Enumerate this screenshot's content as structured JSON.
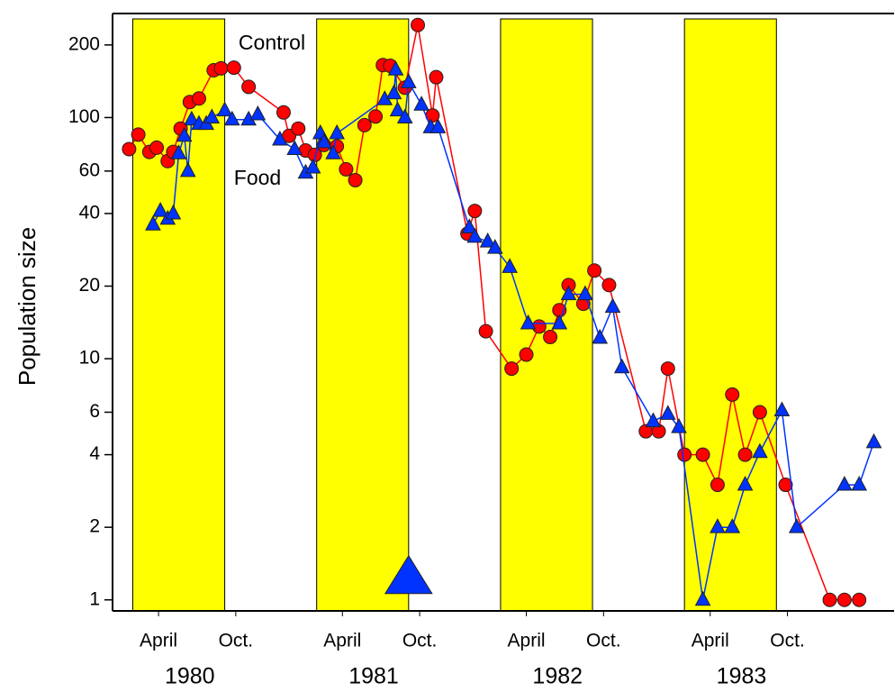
{
  "chart_data": {
    "type": "line",
    "y_label": "Population size",
    "log_scale_y": true,
    "xlim": [
      1980.14,
      1984.39
    ],
    "ylim": [
      0.9,
      270
    ],
    "yticks": [
      1,
      2,
      4,
      6,
      10,
      20,
      40,
      60,
      100,
      200
    ],
    "xticks": [
      {
        "value": 1980.39,
        "label": "April"
      },
      {
        "value": 1980.81,
        "label": "Oct."
      },
      {
        "value": 1981.39,
        "label": "April"
      },
      {
        "value": 1981.81,
        "label": "Oct."
      },
      {
        "value": 1982.39,
        "label": "April"
      },
      {
        "value": 1982.81,
        "label": "Oct."
      },
      {
        "value": 1983.39,
        "label": "April"
      },
      {
        "value": 1983.81,
        "label": "Oct."
      }
    ],
    "year_labels": [
      1980,
      1981,
      1982,
      1983
    ],
    "shaded_periods": [
      [
        1980.25,
        1980.75
      ],
      [
        1981.25,
        1981.75
      ],
      [
        1982.25,
        1982.75
      ],
      [
        1983.25,
        1983.75
      ]
    ],
    "shade_color": "#ffff00",
    "annotation_marker": {
      "x": 1981.75,
      "y": 1.24,
      "color": "#0033ff"
    },
    "series": [
      {
        "name": "Control",
        "color": "#ff0000",
        "marker": "circle",
        "x": [
          1980.23,
          1980.28,
          1980.34,
          1980.38,
          1980.44,
          1980.47,
          1980.51,
          1980.56,
          1980.61,
          1980.69,
          1980.73,
          1980.8,
          1980.88,
          1981.07,
          1981.1,
          1981.15,
          1981.19,
          1981.24,
          1981.29,
          1981.36,
          1981.41,
          1981.46,
          1981.51,
          1981.57,
          1981.61,
          1981.65,
          1981.73,
          1981.8,
          1981.88,
          1981.9,
          1982.07,
          1982.11,
          1982.17,
          1982.31,
          1982.39,
          1982.46,
          1982.52,
          1982.57,
          1982.62,
          1982.7,
          1982.76,
          1982.84,
          1983.04,
          1983.11,
          1983.16,
          1983.25,
          1983.35,
          1983.43,
          1983.51,
          1983.58,
          1983.66,
          1983.8,
          1984.04,
          1984.12,
          1984.2
        ],
        "values": [
          74,
          85,
          72,
          75,
          66,
          72,
          90,
          116,
          120,
          157,
          160,
          161,
          134,
          105,
          84,
          90,
          73,
          70,
          77,
          76,
          61,
          55,
          93,
          101,
          165,
          164,
          133,
          242,
          102,
          147,
          33,
          41,
          13,
          9.1,
          10.4,
          13.6,
          12.3,
          15.9,
          20.2,
          16.9,
          23.2,
          20.2,
          5,
          5,
          9.1,
          4,
          4,
          3,
          7.1,
          4,
          6,
          3,
          1,
          1,
          1
        ]
      },
      {
        "name": "Food",
        "color": "#0033ff",
        "marker": "triangle",
        "x": [
          1980.36,
          1980.4,
          1980.44,
          1980.47,
          1980.5,
          1980.53,
          1980.55,
          1980.57,
          1980.61,
          1980.65,
          1980.68,
          1980.75,
          1980.79,
          1980.88,
          1980.93,
          1981.05,
          1981.13,
          1981.19,
          1981.23,
          1981.27,
          1981.29,
          1981.34,
          1981.36,
          1981.62,
          1981.67,
          1981.68,
          1981.69,
          1981.73,
          1981.75,
          1981.82,
          1981.87,
          1981.91,
          1982.08,
          1982.11,
          1982.18,
          1982.22,
          1982.3,
          1982.4,
          1982.57,
          1982.62,
          1982.71,
          1982.79,
          1982.86,
          1982.91,
          1983.08,
          1983.16,
          1983.22,
          1983.35,
          1983.43,
          1983.51,
          1983.58,
          1983.66,
          1983.78,
          1983.86,
          1984.12,
          1984.2,
          1984.28
        ],
        "values": [
          36,
          41,
          38,
          40,
          71,
          84,
          60,
          98,
          94,
          94,
          100,
          107,
          98,
          98,
          103,
          81,
          74,
          59,
          62,
          86,
          79,
          71,
          86,
          119,
          126,
          158,
          107,
          100,
          140,
          113,
          91,
          91,
          35,
          32,
          30.6,
          28.8,
          24,
          14,
          14,
          18.5,
          18.5,
          12.2,
          16.4,
          9.2,
          5.5,
          5.9,
          5.2,
          1,
          2,
          2,
          3,
          4.1,
          6.1,
          2,
          3,
          3,
          4.5
        ]
      }
    ]
  }
}
